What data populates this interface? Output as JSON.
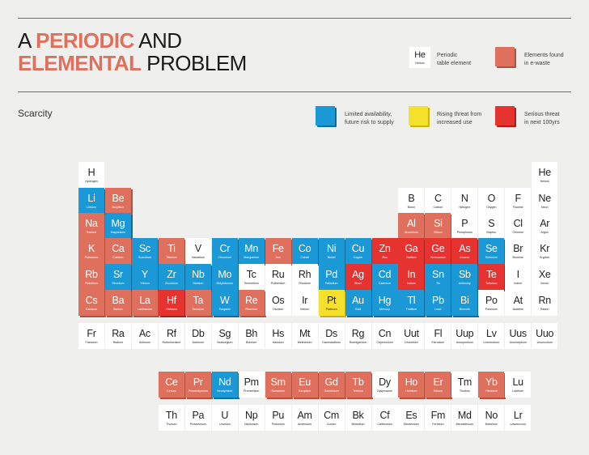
{
  "title": {
    "line1_a": "A ",
    "line1_b": "PERIODIC",
    "line1_c": " AND",
    "line2_a": "ELEMENTAL",
    "line2_b": " PROBLEM"
  },
  "subtitle": "Scarcity",
  "legend": {
    "sample_symbol": "He",
    "sample_name": "Helium",
    "periodic_label": [
      "Periodic",
      "table element"
    ],
    "ewaste_label": [
      "Elements found",
      "in e-waste"
    ],
    "limited_label": [
      "Limited availability,",
      "future risk to supply"
    ],
    "rising_label": [
      "Rising threat from",
      "increased use"
    ],
    "serious_label": [
      "Serious threat",
      "in next 100yrs"
    ]
  },
  "colors": {
    "ewaste": "#e0705e",
    "limited": "#1a99d6",
    "rising": "#f5e12b",
    "serious": "#e63330",
    "plain": "#ffffff"
  },
  "elements": [
    {
      "s": "H",
      "n": "Hydrogen",
      "c": "plain",
      "g": 1,
      "p": 1
    },
    {
      "s": "He",
      "n": "Helium",
      "c": "plain",
      "g": 18,
      "p": 1
    },
    {
      "s": "Li",
      "n": "Lithium",
      "c": "la",
      "g": 1,
      "p": 2
    },
    {
      "s": "Be",
      "n": "Beryllium",
      "c": "ew",
      "g": 2,
      "p": 2
    },
    {
      "s": "B",
      "n": "Boron",
      "c": "plain",
      "g": 13,
      "p": 2
    },
    {
      "s": "C",
      "n": "Carbon",
      "c": "plain",
      "g": 14,
      "p": 2
    },
    {
      "s": "N",
      "n": "Nitrogen",
      "c": "plain",
      "g": 15,
      "p": 2
    },
    {
      "s": "O",
      "n": "Oxygen",
      "c": "plain",
      "g": 16,
      "p": 2
    },
    {
      "s": "F",
      "n": "Fluorine",
      "c": "plain",
      "g": 17,
      "p": 2
    },
    {
      "s": "Ne",
      "n": "Neon",
      "c": "plain",
      "g": 18,
      "p": 2
    },
    {
      "s": "Na",
      "n": "Sodium",
      "c": "ew",
      "g": 1,
      "p": 3
    },
    {
      "s": "Mg",
      "n": "Magnesium",
      "c": "la",
      "g": 2,
      "p": 3
    },
    {
      "s": "Al",
      "n": "Aluminium",
      "c": "ew",
      "g": 13,
      "p": 3
    },
    {
      "s": "Si",
      "n": "Silicon",
      "c": "ew",
      "g": 14,
      "p": 3
    },
    {
      "s": "P",
      "n": "Phosphorus",
      "c": "plain",
      "g": 15,
      "p": 3
    },
    {
      "s": "S",
      "n": "Sulphur",
      "c": "plain",
      "g": 16,
      "p": 3
    },
    {
      "s": "Cl",
      "n": "Chlorine",
      "c": "plain",
      "g": 17,
      "p": 3
    },
    {
      "s": "Ar",
      "n": "Argon",
      "c": "plain",
      "g": 18,
      "p": 3
    },
    {
      "s": "K",
      "n": "Potassium",
      "c": "ew",
      "g": 1,
      "p": 4
    },
    {
      "s": "Ca",
      "n": "Calcium",
      "c": "ew",
      "g": 2,
      "p": 4
    },
    {
      "s": "Sc",
      "n": "Scandium",
      "c": "la",
      "g": 3,
      "p": 4
    },
    {
      "s": "Ti",
      "n": "Titanium",
      "c": "ew",
      "g": 4,
      "p": 4
    },
    {
      "s": "V",
      "n": "Vanadium",
      "c": "plain",
      "g": 5,
      "p": 4
    },
    {
      "s": "Cr",
      "n": "Chromium",
      "c": "la",
      "g": 6,
      "p": 4
    },
    {
      "s": "Mn",
      "n": "Manganese",
      "c": "la",
      "g": 7,
      "p": 4
    },
    {
      "s": "Fe",
      "n": "Iron",
      "c": "ew",
      "g": 8,
      "p": 4
    },
    {
      "s": "Co",
      "n": "Cobalt",
      "c": "la",
      "g": 9,
      "p": 4
    },
    {
      "s": "Ni",
      "n": "Nickel",
      "c": "la",
      "g": 10,
      "p": 4
    },
    {
      "s": "Cu",
      "n": "Copper",
      "c": "la",
      "g": 11,
      "p": 4
    },
    {
      "s": "Zn",
      "n": "Zinc",
      "c": "st",
      "g": 12,
      "p": 4
    },
    {
      "s": "Ga",
      "n": "Gallium",
      "c": "st",
      "g": 13,
      "p": 4
    },
    {
      "s": "Ge",
      "n": "Germanium",
      "c": "st",
      "g": 14,
      "p": 4
    },
    {
      "s": "As",
      "n": "Arsenic",
      "c": "st",
      "g": 15,
      "p": 4
    },
    {
      "s": "Se",
      "n": "Selenium",
      "c": "la",
      "g": 16,
      "p": 4
    },
    {
      "s": "Br",
      "n": "Bromine",
      "c": "plain",
      "g": 17,
      "p": 4
    },
    {
      "s": "Kr",
      "n": "Krypton",
      "c": "plain",
      "g": 18,
      "p": 4
    },
    {
      "s": "Rb",
      "n": "Rubidium",
      "c": "ew",
      "g": 1,
      "p": 5
    },
    {
      "s": "Sr",
      "n": "Strontium",
      "c": "la",
      "g": 2,
      "p": 5
    },
    {
      "s": "Y",
      "n": "Yttrium",
      "c": "la",
      "g": 3,
      "p": 5
    },
    {
      "s": "Zr",
      "n": "Zirconium",
      "c": "la",
      "g": 4,
      "p": 5
    },
    {
      "s": "Nb",
      "n": "Niobium",
      "c": "la",
      "g": 5,
      "p": 5
    },
    {
      "s": "Mo",
      "n": "Molybdenum",
      "c": "la",
      "g": 6,
      "p": 5
    },
    {
      "s": "Tc",
      "n": "Technetium",
      "c": "plain",
      "g": 7,
      "p": 5
    },
    {
      "s": "Ru",
      "n": "Ruthenium",
      "c": "plain",
      "g": 8,
      "p": 5
    },
    {
      "s": "Rh",
      "n": "Rhodium",
      "c": "plain",
      "g": 9,
      "p": 5
    },
    {
      "s": "Pd",
      "n": "Palladium",
      "c": "la",
      "g": 10,
      "p": 5
    },
    {
      "s": "Ag",
      "n": "Silver",
      "c": "st",
      "g": 11,
      "p": 5
    },
    {
      "s": "Cd",
      "n": "Cadmium",
      "c": "la",
      "g": 12,
      "p": 5
    },
    {
      "s": "In",
      "n": "Indium",
      "c": "st",
      "g": 13,
      "p": 5
    },
    {
      "s": "Sn",
      "n": "Tin",
      "c": "la",
      "g": 14,
      "p": 5
    },
    {
      "s": "Sb",
      "n": "Antimony",
      "c": "la",
      "g": 15,
      "p": 5
    },
    {
      "s": "Te",
      "n": "Tellurium",
      "c": "st",
      "g": 16,
      "p": 5
    },
    {
      "s": "I",
      "n": "Iodine",
      "c": "plain",
      "g": 17,
      "p": 5
    },
    {
      "s": "Xe",
      "n": "Xenon",
      "c": "plain",
      "g": 18,
      "p": 5
    },
    {
      "s": "Cs",
      "n": "Caesium",
      "c": "ew",
      "g": 1,
      "p": 6
    },
    {
      "s": "Ba",
      "n": "Barium",
      "c": "ew",
      "g": 2,
      "p": 6
    },
    {
      "s": "La",
      "n": "Lanthanum",
      "c": "ew",
      "g": 3,
      "p": 6
    },
    {
      "s": "Hf",
      "n": "Hafnium",
      "c": "st",
      "g": 4,
      "p": 6
    },
    {
      "s": "Ta",
      "n": "Tantalum",
      "c": "ew",
      "g": 5,
      "p": 6
    },
    {
      "s": "W",
      "n": "Tungsten",
      "c": "la",
      "g": 6,
      "p": 6
    },
    {
      "s": "Re",
      "n": "Rhenium",
      "c": "ew",
      "g": 7,
      "p": 6
    },
    {
      "s": "Os",
      "n": "Osmium",
      "c": "plain",
      "g": 8,
      "p": 6
    },
    {
      "s": "Ir",
      "n": "Iridium",
      "c": "plain",
      "g": 9,
      "p": 6
    },
    {
      "s": "Pt",
      "n": "Platinum",
      "c": "ri",
      "g": 10,
      "p": 6
    },
    {
      "s": "Au",
      "n": "Gold",
      "c": "la",
      "g": 11,
      "p": 6
    },
    {
      "s": "Hg",
      "n": "Mercury",
      "c": "la",
      "g": 12,
      "p": 6
    },
    {
      "s": "Tl",
      "n": "Thallium",
      "c": "la",
      "g": 13,
      "p": 6
    },
    {
      "s": "Pb",
      "n": "Lead",
      "c": "la",
      "g": 14,
      "p": 6
    },
    {
      "s": "Bi",
      "n": "Bismuth",
      "c": "la",
      "g": 15,
      "p": 6
    },
    {
      "s": "Po",
      "n": "Polonium",
      "c": "plain",
      "g": 16,
      "p": 6
    },
    {
      "s": "At",
      "n": "Astatine",
      "c": "plain",
      "g": 17,
      "p": 6
    },
    {
      "s": "Rn",
      "n": "Radon",
      "c": "plain",
      "g": 18,
      "p": 6
    },
    {
      "s": "Fr",
      "n": "Francium",
      "c": "plain",
      "g": 1,
      "p": 7
    },
    {
      "s": "Ra",
      "n": "Radium",
      "c": "plain",
      "g": 2,
      "p": 7
    },
    {
      "s": "Ac",
      "n": "Actinium",
      "c": "plain",
      "g": 3,
      "p": 7
    },
    {
      "s": "Rf",
      "n": "Rutherfordium",
      "c": "plain",
      "g": 4,
      "p": 7
    },
    {
      "s": "Db",
      "n": "Dubnium",
      "c": "plain",
      "g": 5,
      "p": 7
    },
    {
      "s": "Sg",
      "n": "Seaborgium",
      "c": "plain",
      "g": 6,
      "p": 7
    },
    {
      "s": "Bh",
      "n": "Bohrium",
      "c": "plain",
      "g": 7,
      "p": 7
    },
    {
      "s": "Hs",
      "n": "Hassium",
      "c": "plain",
      "g": 8,
      "p": 7
    },
    {
      "s": "Mt",
      "n": "Meitnerium",
      "c": "plain",
      "g": 9,
      "p": 7
    },
    {
      "s": "Ds",
      "n": "Darmstadtium",
      "c": "plain",
      "g": 10,
      "p": 7
    },
    {
      "s": "Rg",
      "n": "Roentgenium",
      "c": "plain",
      "g": 11,
      "p": 7
    },
    {
      "s": "Cn",
      "n": "Copernicium",
      "c": "plain",
      "g": 12,
      "p": 7
    },
    {
      "s": "Uut",
      "n": "Ununtrium",
      "c": "plain",
      "g": 13,
      "p": 7
    },
    {
      "s": "Fl",
      "n": "Flerovium",
      "c": "plain",
      "g": 14,
      "p": 7
    },
    {
      "s": "Uup",
      "n": "Ununpentium",
      "c": "plain",
      "g": 15,
      "p": 7
    },
    {
      "s": "Lv",
      "n": "Livermorium",
      "c": "plain",
      "g": 16,
      "p": 7
    },
    {
      "s": "Uus",
      "n": "Ununseptium",
      "c": "plain",
      "g": 17,
      "p": 7
    },
    {
      "s": "Uuo",
      "n": "Ununoctium",
      "c": "plain",
      "g": 18,
      "p": 7
    },
    {
      "s": "Ce",
      "n": "Cerium",
      "c": "ew",
      "g": 4,
      "p": 9
    },
    {
      "s": "Pr",
      "n": "Praseodymium",
      "c": "ew",
      "g": 5,
      "p": 9
    },
    {
      "s": "Nd",
      "n": "Neodymium",
      "c": "la",
      "g": 6,
      "p": 9
    },
    {
      "s": "Pm",
      "n": "Promethium",
      "c": "plain",
      "g": 7,
      "p": 9
    },
    {
      "s": "Sm",
      "n": "Samarium",
      "c": "ew",
      "g": 8,
      "p": 9
    },
    {
      "s": "Eu",
      "n": "Europium",
      "c": "ew",
      "g": 9,
      "p": 9
    },
    {
      "s": "Gd",
      "n": "Gadolinium",
      "c": "ew",
      "g": 10,
      "p": 9
    },
    {
      "s": "Tb",
      "n": "Terbium",
      "c": "ew",
      "g": 11,
      "p": 9
    },
    {
      "s": "Dy",
      "n": "Dysprosium",
      "c": "plain",
      "g": 12,
      "p": 9
    },
    {
      "s": "Ho",
      "n": "Holmium",
      "c": "ew",
      "g": 13,
      "p": 9
    },
    {
      "s": "Er",
      "n": "Erbium",
      "c": "ew",
      "g": 14,
      "p": 9
    },
    {
      "s": "Tm",
      "n": "Thulium",
      "c": "plain",
      "g": 15,
      "p": 9
    },
    {
      "s": "Yb",
      "n": "Ytterbium",
      "c": "ew",
      "g": 16,
      "p": 9
    },
    {
      "s": "Lu",
      "n": "Lutetium",
      "c": "plain",
      "g": 17,
      "p": 9
    },
    {
      "s": "Th",
      "n": "Thorium",
      "c": "plain",
      "g": 4,
      "p": 10
    },
    {
      "s": "Pa",
      "n": "Protactinium",
      "c": "plain",
      "g": 5,
      "p": 10
    },
    {
      "s": "U",
      "n": "Uranium",
      "c": "plain",
      "g": 6,
      "p": 10
    },
    {
      "s": "Np",
      "n": "Neptunium",
      "c": "plain",
      "g": 7,
      "p": 10
    },
    {
      "s": "Pu",
      "n": "Plutonium",
      "c": "plain",
      "g": 8,
      "p": 10
    },
    {
      "s": "Am",
      "n": "Americium",
      "c": "plain",
      "g": 9,
      "p": 10
    },
    {
      "s": "Cm",
      "n": "Curium",
      "c": "plain",
      "g": 10,
      "p": 10
    },
    {
      "s": "Bk",
      "n": "Berkelium",
      "c": "plain",
      "g": 11,
      "p": 10
    },
    {
      "s": "Cf",
      "n": "Californium",
      "c": "plain",
      "g": 12,
      "p": 10
    },
    {
      "s": "Es",
      "n": "Einsteinium",
      "c": "plain",
      "g": 13,
      "p": 10
    },
    {
      "s": "Fm",
      "n": "Fermium",
      "c": "plain",
      "g": 14,
      "p": 10
    },
    {
      "s": "Md",
      "n": "Mendelevium",
      "c": "plain",
      "g": 15,
      "p": 10
    },
    {
      "s": "No",
      "n": "Nobelium",
      "c": "plain",
      "g": 16,
      "p": 10
    },
    {
      "s": "Lr",
      "n": "Lawrencium",
      "c": "plain",
      "g": 17,
      "p": 10
    }
  ]
}
